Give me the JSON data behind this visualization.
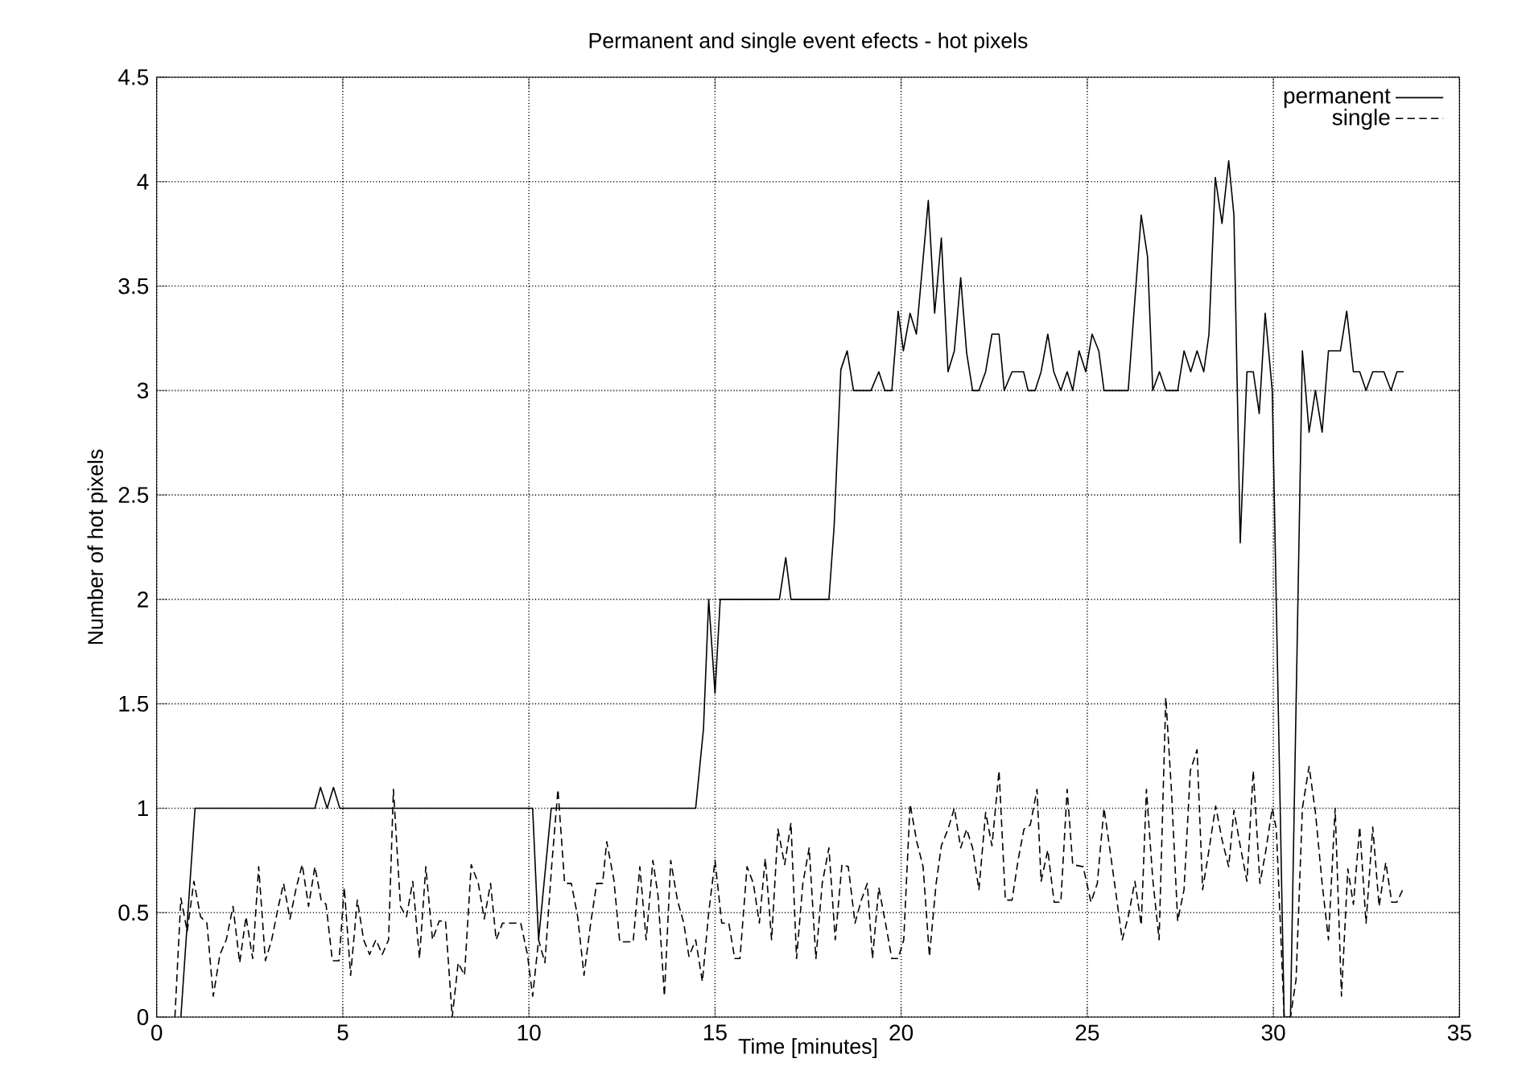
{
  "chart_data": {
    "type": "line",
    "title": "Permanent and single event efects - hot pixels",
    "xlabel": "Time [minutes]",
    "ylabel": "Number of hot pixels",
    "xlim": [
      0,
      35
    ],
    "ylim": [
      0,
      4.5
    ],
    "xticks": [
      0,
      5,
      10,
      15,
      20,
      25,
      30,
      35
    ],
    "yticks": [
      0,
      0.5,
      1,
      1.5,
      2,
      2.5,
      3,
      3.5,
      4,
      4.5
    ],
    "grid": true,
    "legend": "top right",
    "marker": "none",
    "series": [
      {
        "name": "permanent",
        "color": "#000000",
        "line_style": "solid",
        "x": [
          0.65,
          1.03,
          4.25,
          4.4,
          4.58,
          4.75,
          4.92,
          10.1,
          10.26,
          10.6,
          14.48,
          14.69,
          14.83,
          15.0,
          15.14,
          16.73,
          16.9,
          17.04,
          18.06,
          18.2,
          18.38,
          18.55,
          18.72,
          19.19,
          19.4,
          19.56,
          19.75,
          19.92,
          20.06,
          20.24,
          20.41,
          20.73,
          20.9,
          21.08,
          21.26,
          21.43,
          21.6,
          21.76,
          21.92,
          22.09,
          22.27,
          22.44,
          22.63,
          22.77,
          22.98,
          23.29,
          23.41,
          23.6,
          23.76,
          23.94,
          24.1,
          24.29,
          24.46,
          24.61,
          24.78,
          24.96,
          25.13,
          25.31,
          25.45,
          26.1,
          26.29,
          26.45,
          26.62,
          26.76,
          26.94,
          27.11,
          27.43,
          27.6,
          27.78,
          27.95,
          28.13,
          28.27,
          28.44,
          28.62,
          28.8,
          28.94,
          29.11,
          29.29,
          29.46,
          29.62,
          29.78,
          29.97,
          30.29,
          30.46,
          30.78,
          30.96,
          31.13,
          31.31,
          31.48,
          31.8,
          31.97,
          32.15,
          32.32,
          32.49,
          32.67,
          32.97,
          33.16,
          33.32,
          33.5
        ],
        "values": [
          0,
          1,
          1,
          1.1,
          1,
          1.1,
          1,
          1,
          0.37,
          1,
          1,
          1.38,
          2,
          1.55,
          2,
          2,
          2.2,
          2,
          2,
          2.35,
          3.1,
          3.19,
          3,
          3,
          3.09,
          3,
          3,
          3.38,
          3.19,
          3.37,
          3.27,
          3.91,
          3.37,
          3.73,
          3.09,
          3.19,
          3.54,
          3.18,
          3,
          3,
          3.09,
          3.27,
          3.27,
          3,
          3.09,
          3.09,
          3,
          3,
          3.09,
          3.27,
          3.09,
          3,
          3.09,
          3,
          3.19,
          3.09,
          3.27,
          3.19,
          3,
          3,
          3.46,
          3.84,
          3.64,
          3,
          3.09,
          3,
          3,
          3.19,
          3.09,
          3.19,
          3.09,
          3.27,
          4.02,
          3.8,
          4.1,
          3.84,
          2.27,
          3.09,
          3.09,
          2.89,
          3.37,
          3,
          0,
          0,
          3.19,
          2.8,
          3,
          2.8,
          3.19,
          3.19,
          3.38,
          3.09,
          3.09,
          3,
          3.09,
          3.09,
          3,
          3.09,
          3.09
        ]
      },
      {
        "name": "single",
        "color": "#000000",
        "line_style": "dashed",
        "x": [
          0.49,
          0.65,
          0.82,
          1.0,
          1.18,
          1.35,
          1.52,
          1.7,
          1.87,
          2.05,
          2.23,
          2.4,
          2.58,
          2.74,
          2.92,
          3.09,
          3.27,
          3.41,
          3.58,
          3.75,
          3.91,
          4.08,
          4.25,
          4.42,
          4.55,
          4.72,
          4.9,
          5.04,
          5.21,
          5.39,
          5.56,
          5.72,
          5.89,
          6.06,
          6.23,
          6.36,
          6.55,
          6.71,
          6.88,
          7.06,
          7.23,
          7.41,
          7.59,
          7.76,
          7.94,
          8.1,
          8.27,
          8.45,
          8.64,
          8.8,
          8.97,
          9.12,
          9.29,
          9.78,
          9.96,
          10.1,
          10.26,
          10.43,
          10.61,
          10.78,
          10.96,
          11.14,
          11.31,
          11.48,
          11.66,
          11.82,
          11.98,
          12.09,
          12.28,
          12.44,
          12.8,
          12.98,
          13.15,
          13.33,
          13.47,
          13.64,
          13.81,
          13.99,
          14.16,
          14.3,
          14.48,
          14.66,
          14.83,
          15.0,
          15.18,
          15.37,
          15.53,
          15.67,
          15.86,
          16.03,
          16.19,
          16.35,
          16.52,
          16.69,
          16.87,
          17.04,
          17.19,
          17.36,
          17.53,
          17.71,
          17.88,
          18.06,
          18.23,
          18.41,
          18.58,
          18.76,
          18.93,
          19.09,
          19.23,
          19.4,
          19.58,
          19.75,
          19.92,
          20.07,
          20.24,
          20.42,
          20.59,
          20.76,
          20.94,
          21.08,
          21.26,
          21.43,
          21.6,
          21.76,
          21.92,
          22.09,
          22.27,
          22.44,
          22.63,
          22.8,
          22.98,
          23.15,
          23.3,
          23.47,
          23.65,
          23.76,
          23.94,
          24.11,
          24.29,
          24.46,
          24.61,
          24.89,
          25.1,
          25.27,
          25.45,
          25.61,
          25.78,
          25.94,
          26.1,
          26.28,
          26.45,
          26.59,
          26.76,
          26.93,
          27.11,
          27.26,
          27.43,
          27.6,
          27.77,
          27.95,
          28.1,
          28.27,
          28.45,
          28.62,
          28.8,
          28.94,
          29.11,
          29.29,
          29.46,
          29.64,
          29.8,
          29.97,
          30.08,
          30.18,
          30.29,
          30.46,
          30.61,
          30.78,
          30.96,
          31.13,
          31.31,
          31.48,
          31.66,
          31.83,
          32.0,
          32.15,
          32.32,
          32.49,
          32.67,
          32.84,
          33.02,
          33.18,
          33.32,
          33.5
        ],
        "values": [
          0,
          0.57,
          0.41,
          0.65,
          0.48,
          0.45,
          0.1,
          0.3,
          0.37,
          0.53,
          0.26,
          0.48,
          0.28,
          0.72,
          0.27,
          0.37,
          0.53,
          0.64,
          0.47,
          0.62,
          0.73,
          0.53,
          0.72,
          0.56,
          0.54,
          0.27,
          0.27,
          0.62,
          0.2,
          0.56,
          0.37,
          0.3,
          0.37,
          0.3,
          0.37,
          1.09,
          0.53,
          0.48,
          0.65,
          0.28,
          0.72,
          0.37,
          0.46,
          0.46,
          0,
          0.26,
          0.2,
          0.73,
          0.64,
          0.47,
          0.64,
          0.37,
          0.45,
          0.45,
          0.3,
          0.1,
          0.37,
          0.26,
          0.72,
          1.09,
          0.64,
          0.64,
          0.48,
          0.2,
          0.45,
          0.64,
          0.64,
          0.84,
          0.66,
          0.36,
          0.36,
          0.72,
          0.37,
          0.75,
          0.58,
          0.1,
          0.75,
          0.56,
          0.45,
          0.29,
          0.37,
          0.17,
          0.5,
          0.75,
          0.45,
          0.45,
          0.28,
          0.28,
          0.72,
          0.64,
          0.45,
          0.76,
          0.37,
          0.9,
          0.73,
          0.93,
          0.28,
          0.64,
          0.81,
          0.28,
          0.64,
          0.81,
          0.37,
          0.73,
          0.72,
          0.45,
          0.56,
          0.64,
          0.28,
          0.62,
          0.45,
          0.28,
          0.28,
          0.37,
          1.02,
          0.84,
          0.72,
          0.29,
          0.64,
          0.82,
          0.9,
          1.0,
          0.81,
          0.9,
          0.81,
          0.61,
          0.98,
          0.82,
          1.18,
          0.56,
          0.56,
          0.76,
          0.9,
          0.92,
          1.09,
          0.65,
          0.8,
          0.55,
          0.55,
          1.09,
          0.73,
          0.72,
          0.55,
          0.64,
          1.0,
          0.8,
          0.58,
          0.37,
          0.48,
          0.65,
          0.44,
          1.09,
          0.66,
          0.37,
          1.53,
          1.09,
          0.46,
          0.61,
          1.18,
          1.28,
          0.61,
          0.8,
          1.01,
          0.85,
          0.72,
          0.99,
          0.82,
          0.65,
          1.18,
          0.64,
          0.8,
          1.0,
          0.9,
          0.48,
          0,
          0,
          0.18,
          1.0,
          1.2,
          0.98,
          0.64,
          0.37,
          1.0,
          0.1,
          0.71,
          0.54,
          0.91,
          0.45,
          0.91,
          0.53,
          0.74,
          0.55,
          0.55,
          0.62
        ]
      }
    ]
  }
}
